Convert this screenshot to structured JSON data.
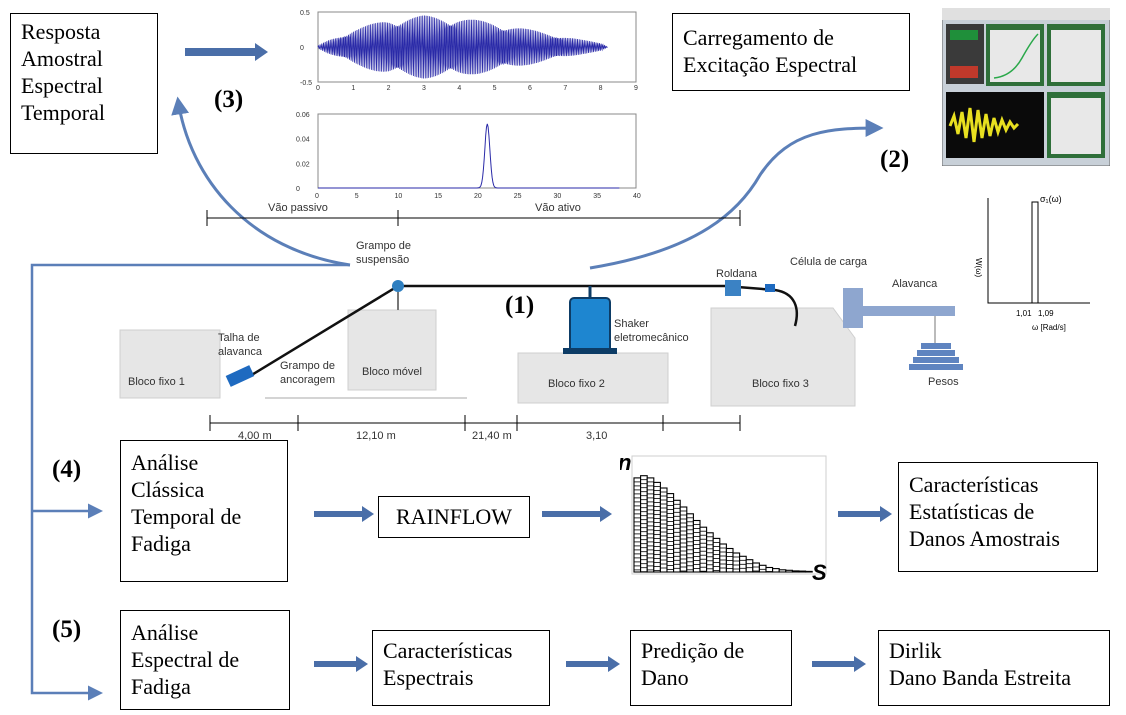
{
  "boxes": {
    "resposta": [
      "Resposta",
      "Amostral",
      "Espectral",
      "Temporal"
    ],
    "carregamento": [
      "Carregamento de",
      "Excitação Espectral"
    ],
    "classica": [
      "Análise",
      "Clássica",
      "Temporal de",
      "Fadiga"
    ],
    "rainflow": [
      "RAINFLOW"
    ],
    "estatisticas": [
      "Características",
      "Estatísticas de",
      "Danos Amostrais"
    ],
    "espectral": [
      "Análise",
      "Espectral de",
      "Fadiga"
    ],
    "caracteristicas": [
      "Características",
      "Espectrais"
    ],
    "predicao": [
      "Predição de",
      "Dano"
    ],
    "dirlik": [
      "Dirlik",
      "Dano Banda Estreita"
    ]
  },
  "steps": [
    "(1)",
    "(2)",
    "(3)",
    "(4)",
    "(5)"
  ],
  "setup_labels": {
    "vao_passivo": "Vão passivo",
    "vao_ativo": "Vão ativo",
    "grampo_suspensao": [
      "Grampo de",
      "suspensão"
    ],
    "roldana": "Roldana",
    "celula": "Célula de carga",
    "alavanca": "Alavanca",
    "talha": [
      "Talha de",
      "alavanca"
    ],
    "grampo_ancoragem": [
      "Grampo de",
      "ancoragem"
    ],
    "shaker": [
      "Shaker",
      "eletromecânico"
    ],
    "bloco_fixo_1": "Bloco fixo 1",
    "bloco_movel": "Bloco móvel",
    "bloco_fixo_2": "Bloco fixo 2",
    "bloco_fixo_3": "Bloco fixo 3",
    "pesos": "Pesos",
    "dims": [
      "4,00 m",
      "12,10 m",
      "21,40 m",
      "3,10"
    ]
  },
  "histogram_axes": {
    "y": "n",
    "x": "S"
  },
  "psd_labels": {
    "sigma": "σ₁(ω)",
    "ylabel": "W(ω)",
    "t1": "1,01",
    "t2": "1,09",
    "xlabel": "ω [Rad/s]"
  },
  "chart_data": [
    {
      "type": "line",
      "description_key": "time signal",
      "x_ticks": [
        0,
        1,
        2,
        3,
        4,
        5,
        6,
        7,
        8,
        9
      ],
      "y_ticks": [
        -0.5,
        0,
        0.5
      ],
      "xlim": [
        0,
        9
      ],
      "ylim": [
        -0.5,
        0.5
      ],
      "envelope": {
        "x": [
          0,
          0.3,
          1,
          2,
          3,
          4,
          5,
          6,
          7,
          7.5,
          8,
          8.2
        ],
        "amp": [
          0.02,
          0.1,
          0.25,
          0.4,
          0.45,
          0.42,
          0.35,
          0.25,
          0.15,
          0.1,
          0.06,
          0.0
        ]
      },
      "series_color": "#2a2aa8"
    },
    {
      "type": "line",
      "x_ticks": [
        0,
        5,
        10,
        15,
        20,
        25,
        30,
        35,
        40
      ],
      "y_ticks": [
        0,
        0.02,
        0.04,
        0.06
      ],
      "xlim": [
        0,
        40
      ],
      "ylim": [
        0,
        0.06
      ],
      "peak": {
        "x": 21.3,
        "y": 0.052
      },
      "series_color": "#2a2aa8"
    },
    {
      "type": "bar",
      "values": [
        0.84,
        0.86,
        0.84,
        0.8,
        0.75,
        0.7,
        0.64,
        0.58,
        0.52,
        0.46,
        0.4,
        0.35,
        0.3,
        0.25,
        0.21,
        0.17,
        0.14,
        0.11,
        0.08,
        0.06,
        0.04,
        0.03,
        0.02,
        0.015,
        0.01,
        0.008,
        0.005
      ]
    }
  ]
}
